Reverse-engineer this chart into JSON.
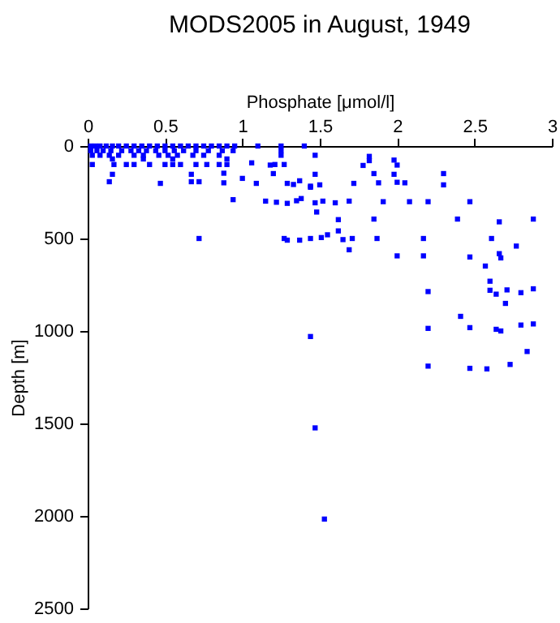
{
  "chart_data": {
    "type": "scatter",
    "title": "MODS2005 in August, 1949",
    "xlabel": "Phosphate [μmol/l]",
    "ylabel": "Depth [m]",
    "xlim": [
      0,
      3
    ],
    "xticks": [
      0,
      0.5,
      1,
      1.5,
      2,
      2.5,
      3
    ],
    "ylim": [
      2500,
      0
    ],
    "yticks": [
      0,
      500,
      1000,
      1500,
      2000,
      2500
    ],
    "grid": false,
    "marker": "square",
    "series": [
      {
        "color": "#0000ff",
        "x": [
          0.02,
          0.05,
          0.08,
          0.12,
          0.16,
          0.2,
          0.25,
          0.3,
          0.35,
          0.4,
          0.45,
          0.5,
          0.55,
          0.6,
          0.65,
          0.7,
          0.75,
          0.8,
          0.85,
          0.9,
          0.95,
          1.1,
          1.25,
          1.4,
          0.02,
          0.06,
          0.1,
          0.15,
          0.22,
          0.28,
          0.33,
          0.38,
          0.44,
          0.5,
          0.56,
          0.62,
          0.7,
          0.78,
          0.87,
          0.94,
          1.25,
          0.03,
          0.08,
          0.14,
          0.2,
          0.3,
          0.36,
          0.46,
          0.52,
          0.58,
          0.68,
          0.75,
          0.85,
          1.25,
          0.16,
          0.36,
          0.55,
          0.9,
          0.03,
          0.17,
          0.25,
          0.3,
          0.4,
          0.5,
          0.55,
          0.6,
          0.7,
          0.77,
          0.85,
          0.9,
          1.21,
          1.27,
          0.14,
          0.16,
          0.47,
          0.67,
          0.67,
          0.72,
          0.88,
          0.88,
          0.94,
          1.0,
          1.06,
          1.09,
          1.2,
          1.18,
          1.15,
          1.22,
          1.29,
          1.33,
          1.37,
          1.29,
          1.35,
          1.38,
          1.44,
          0.72,
          1.27,
          1.29,
          1.37,
          1.47,
          1.82,
          1.82,
          1.78,
          1.98,
          2.0,
          1.47,
          1.85,
          1.98,
          2.3,
          1.44,
          1.5,
          1.72,
          1.88,
          2.0,
          2.05,
          2.3,
          1.47,
          1.52,
          1.6,
          1.69,
          1.91,
          2.08,
          2.2,
          2.47,
          1.48,
          1.62,
          1.85,
          2.39,
          2.66,
          2.88,
          1.44,
          1.51,
          1.55,
          1.62,
          1.65,
          1.71,
          1.87,
          2.17,
          2.61,
          1.69,
          2.0,
          2.17,
          2.47,
          2.66,
          2.67,
          2.77,
          2.57,
          2.6,
          2.6,
          2.64,
          2.71,
          2.7,
          2.8,
          2.88,
          2.2,
          2.41,
          2.47,
          2.2,
          2.64,
          2.67,
          2.8,
          2.88,
          2.84,
          2.2,
          2.47,
          2.58,
          2.73,
          1.44,
          1.47,
          1.53
        ],
        "values": [
          0,
          0,
          0,
          0,
          0,
          0,
          0,
          0,
          0,
          0,
          0,
          0,
          0,
          0,
          0,
          0,
          0,
          0,
          0,
          0,
          0,
          0,
          0,
          0,
          25,
          25,
          25,
          25,
          25,
          25,
          25,
          25,
          25,
          25,
          25,
          25,
          25,
          25,
          25,
          25,
          25,
          50,
          50,
          50,
          50,
          50,
          50,
          50,
          50,
          50,
          50,
          50,
          50,
          50,
          70,
          70,
          70,
          70,
          100,
          100,
          100,
          100,
          100,
          100,
          100,
          100,
          100,
          100,
          100,
          100,
          100,
          100,
          193,
          153,
          202,
          153,
          193,
          193,
          147,
          199,
          290,
          175,
          91,
          202,
          149,
          103,
          298,
          304,
          202,
          208,
          188,
          310,
          296,
          284,
          223,
          500,
          500,
          509,
          509,
          50,
          56,
          79,
          105,
          76,
          103,
          153,
          149,
          153,
          149,
          217,
          210,
          202,
          199,
          196,
          199,
          210,
          307,
          298,
          307,
          298,
          301,
          301,
          301,
          301,
          357,
          398,
          395,
          395,
          410,
          395,
          500,
          495,
          480,
          459,
          506,
          500,
          500,
          500,
          500,
          561,
          594,
          594,
          600,
          582,
          605,
          541,
          649,
          731,
          780,
          801,
          778,
          851,
          793,
          772,
          787,
          921,
          982,
          986,
          991,
          1000,
          968,
          962,
          1111,
          1190,
          1202,
          1205,
          1181,
          1030,
          1524,
          2017
        ]
      }
    ]
  }
}
